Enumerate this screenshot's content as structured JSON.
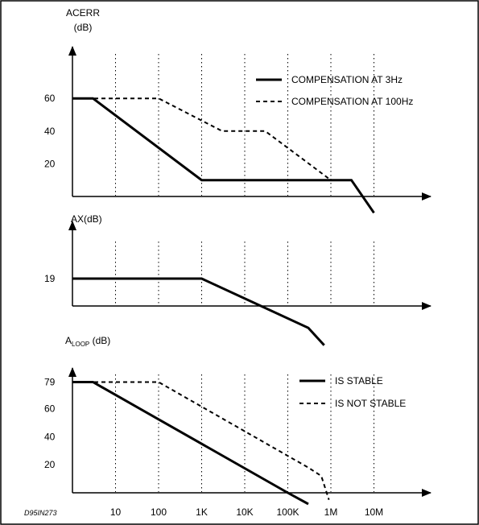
{
  "figure_code": "D95IN273",
  "chart_data": [
    {
      "type": "line",
      "ylabel_line1": "ACERR",
      "ylabel_line2": "(dB)",
      "x_scale": "log",
      "xlim": [
        1,
        100000000
      ],
      "ylim": [
        -20,
        70
      ],
      "yticks": [
        60,
        40,
        20
      ],
      "grid": "vertical dotted at decades",
      "legend_position": "top-right",
      "series": [
        {
          "name": "COMPENSATION AT 3Hz",
          "style": "solid",
          "x": [
            1,
            3,
            1000,
            3000000,
            10000000
          ],
          "y": [
            60,
            60,
            10,
            10,
            -10
          ]
        },
        {
          "name": "COMPENSATION AT 100Hz",
          "style": "dashed",
          "x": [
            1,
            100,
            3000,
            30000,
            1000000
          ],
          "y": [
            60,
            60,
            40,
            40,
            10
          ]
        }
      ]
    },
    {
      "type": "line",
      "ylabel": "AX(dB)",
      "x_scale": "log",
      "xlim": [
        1,
        100000000
      ],
      "ylim": [
        -20,
        40
      ],
      "yticks": [
        19
      ],
      "grid": "vertical dotted at decades",
      "series": [
        {
          "name": "",
          "style": "solid",
          "x": [
            1,
            1000,
            300000,
            700000
          ],
          "y": [
            19,
            19,
            -15,
            -27
          ]
        }
      ]
    },
    {
      "type": "line",
      "ylabel_main": "A",
      "ylabel_sub": "LOOP",
      "ylabel_unit": " (dB)",
      "x_scale": "log",
      "xlim": [
        1,
        100000000
      ],
      "ylim": [
        0,
        90
      ],
      "xticks": [
        "10",
        "100",
        "1K",
        "10K",
        "100K",
        "1M",
        "10M"
      ],
      "yticks": [
        79,
        60,
        40,
        20
      ],
      "grid": "vertical dotted at decades",
      "legend_position": "right",
      "series": [
        {
          "name": "IS STABLE",
          "style": "solid",
          "x": [
            1,
            3,
            100000,
            300000
          ],
          "y": [
            79,
            79,
            0,
            -8
          ]
        },
        {
          "name": "IS NOT STABLE",
          "style": "dashed",
          "x": [
            1,
            100,
            300000,
            600000,
            900000
          ],
          "y": [
            79,
            79,
            18,
            12,
            -5
          ]
        }
      ]
    }
  ]
}
